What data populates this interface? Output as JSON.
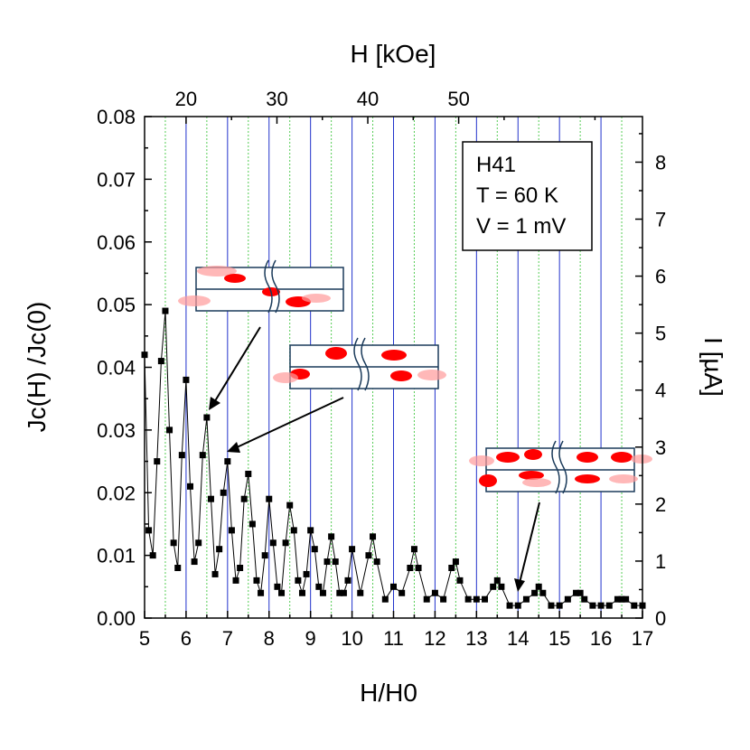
{
  "chart_data": {
    "type": "scatter",
    "title": "",
    "xlabel": "H/H0",
    "ylabel": "Jc(H) /Jc(0)",
    "x_top_label": "H [kOe]",
    "y_right_label": "I [µA]",
    "xlim": [
      5,
      17
    ],
    "ylim": [
      0,
      0.08
    ],
    "x_top_ticks": [
      "20",
      "30",
      "40",
      "50"
    ],
    "x_top_tick_values_bottom_scale": [
      6.0,
      8.19,
      10.38,
      12.57
    ],
    "y_right_range": [
      0,
      8.8
    ],
    "y_right_ticks": [
      0,
      1,
      2,
      3,
      4,
      5,
      6,
      7,
      8
    ],
    "x_ticks": [
      5,
      6,
      7,
      8,
      9,
      10,
      11,
      12,
      13,
      14,
      15,
      16,
      17
    ],
    "y_ticks": [
      "0.00",
      "0.01",
      "0.02",
      "0.03",
      "0.04",
      "0.05",
      "0.06",
      "0.07",
      "0.08"
    ],
    "gridlines": {
      "integer_lines": "blue solid",
      "half_integer_lines": "green dotted"
    },
    "legend": {
      "lines": [
        "H41",
        "T = 60 K",
        "V = 1 mV"
      ],
      "placement": "top-right"
    },
    "series": [
      {
        "name": "H41",
        "marker": "square",
        "color": "#000000",
        "x": [
          5.0,
          5.1,
          5.2,
          5.3,
          5.4,
          5.5,
          5.6,
          5.7,
          5.8,
          5.9,
          6.0,
          6.1,
          6.2,
          6.3,
          6.4,
          6.5,
          6.6,
          6.7,
          6.8,
          6.9,
          7.0,
          7.1,
          7.2,
          7.3,
          7.4,
          7.5,
          7.6,
          7.7,
          7.8,
          7.9,
          8.0,
          8.1,
          8.2,
          8.3,
          8.4,
          8.5,
          8.6,
          8.7,
          8.8,
          8.9,
          9.0,
          9.1,
          9.2,
          9.3,
          9.4,
          9.5,
          9.6,
          9.7,
          9.8,
          9.9,
          10.0,
          10.2,
          10.4,
          10.5,
          10.6,
          10.8,
          11.0,
          11.2,
          11.4,
          11.5,
          11.6,
          11.8,
          12.0,
          12.2,
          12.4,
          12.5,
          12.6,
          12.8,
          13.0,
          13.2,
          13.4,
          13.5,
          13.6,
          13.8,
          14.0,
          14.2,
          14.4,
          14.5,
          14.6,
          14.8,
          15.0,
          15.2,
          15.4,
          15.5,
          15.6,
          15.8,
          16.0,
          16.2,
          16.4,
          16.5,
          16.6,
          16.8,
          17.0
        ],
        "y": [
          0.042,
          0.014,
          0.01,
          0.025,
          0.041,
          0.049,
          0.03,
          0.012,
          0.008,
          0.026,
          0.038,
          0.021,
          0.009,
          0.012,
          0.026,
          0.032,
          0.019,
          0.007,
          0.011,
          0.02,
          0.025,
          0.014,
          0.006,
          0.008,
          0.019,
          0.023,
          0.015,
          0.006,
          0.004,
          0.01,
          0.019,
          0.012,
          0.005,
          0.004,
          0.012,
          0.018,
          0.014,
          0.006,
          0.004,
          0.007,
          0.014,
          0.011,
          0.005,
          0.004,
          0.009,
          0.013,
          0.009,
          0.004,
          0.004,
          0.006,
          0.011,
          0.004,
          0.01,
          0.013,
          0.009,
          0.003,
          0.005,
          0.004,
          0.008,
          0.011,
          0.008,
          0.003,
          0.004,
          0.003,
          0.008,
          0.009,
          0.006,
          0.003,
          0.003,
          0.003,
          0.005,
          0.006,
          0.005,
          0.002,
          0.002,
          0.003,
          0.004,
          0.005,
          0.004,
          0.002,
          0.002,
          0.003,
          0.004,
          0.004,
          0.003,
          0.002,
          0.002,
          0.002,
          0.003,
          0.003,
          0.003,
          0.002,
          0.002
        ]
      }
    ],
    "annotations": [
      {
        "type": "arrow-inset",
        "target_x": 6.4,
        "target_y": 0.032,
        "description": "two-channel vortex configuration sketch"
      },
      {
        "type": "arrow-inset",
        "target_x": 7.0,
        "target_y": 0.026,
        "description": "vortex configuration sketch"
      },
      {
        "type": "arrow-inset",
        "target_x": 14.0,
        "target_y": 0.002,
        "description": "multi-vortex configuration sketch"
      }
    ]
  }
}
